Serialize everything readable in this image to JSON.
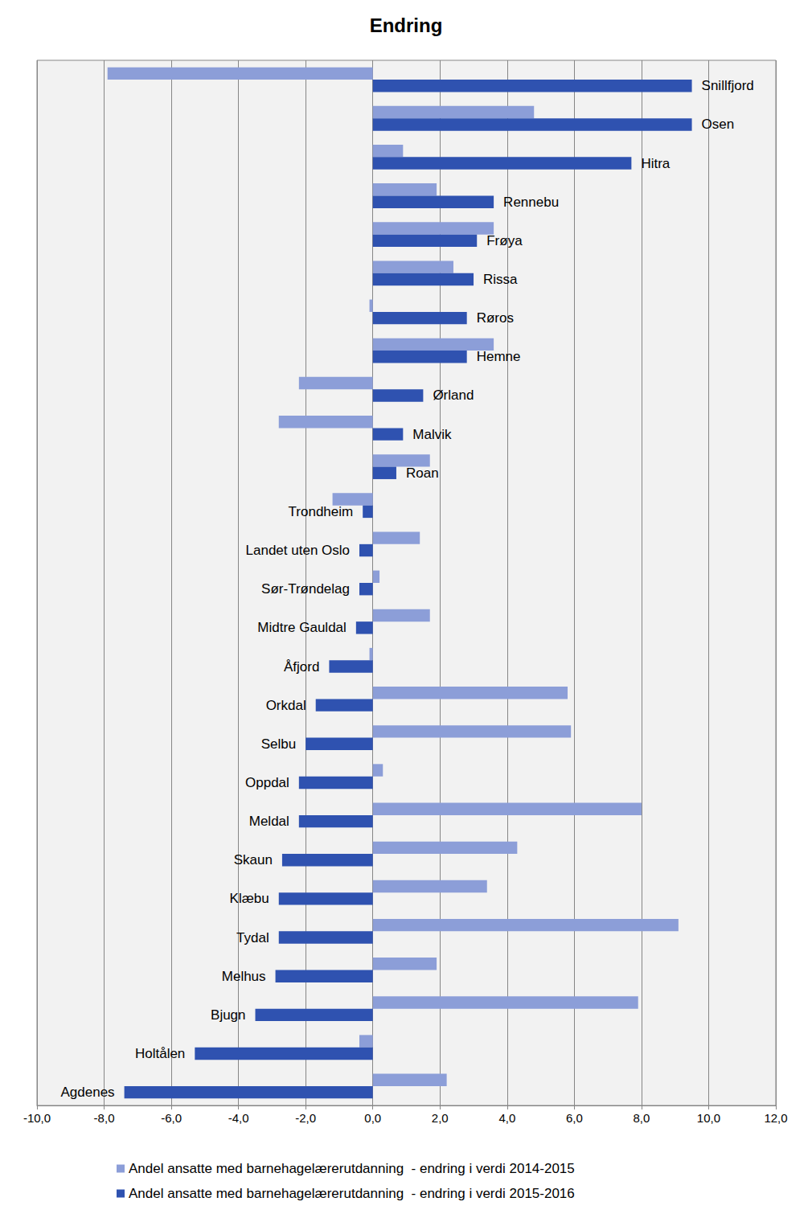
{
  "chart_data": {
    "type": "bar",
    "orientation": "horizontal",
    "title": "Endring",
    "categories": [
      "Snillfjord",
      "Osen",
      "Hitra",
      "Rennebu",
      "Frøya",
      "Rissa",
      "Røros",
      "Hemne",
      "Ørland",
      "Malvik",
      "Roan",
      "Trondheim",
      "Landet uten Oslo",
      "Sør-Trøndelag",
      "Midtre Gauldal",
      "Åfjord",
      "Orkdal",
      "Selbu",
      "Oppdal",
      "Meldal",
      "Skaun",
      "Klæbu",
      "Tydal",
      "Melhus",
      "Bjugn",
      "Holtålen",
      "Agdenes"
    ],
    "series": [
      {
        "name": "Andel ansatte med barnehagelærerutdanning  - endring i verdi 2014-2015",
        "color": "#8c9ed8",
        "values": [
          -7.9,
          4.8,
          0.9,
          1.9,
          3.6,
          2.4,
          -0.1,
          3.6,
          -2.2,
          -2.8,
          1.7,
          -1.2,
          1.4,
          0.2,
          1.7,
          -0.1,
          5.8,
          5.9,
          0.3,
          8.0,
          4.3,
          3.4,
          9.1,
          1.9,
          7.9,
          -0.4,
          2.2
        ]
      },
      {
        "name": "Andel ansatte med barnehagelærerutdanning  - endring i verdi 2015-2016",
        "color": "#2f52b0",
        "values": [
          9.5,
          9.5,
          7.7,
          3.6,
          3.1,
          3.0,
          2.8,
          2.8,
          1.5,
          0.9,
          0.7,
          -0.3,
          -0.4,
          -0.4,
          -0.5,
          -1.3,
          -1.7,
          -2.0,
          -2.2,
          -2.2,
          -2.7,
          -2.8,
          -2.8,
          -2.9,
          -3.5,
          -5.3,
          -7.4
        ]
      }
    ],
    "xlim": [
      -10,
      12
    ],
    "xticks": [
      {
        "value": -10,
        "label": "-10,0"
      },
      {
        "value": -8,
        "label": "-8,0"
      },
      {
        "value": -6,
        "label": "-6,0"
      },
      {
        "value": -4,
        "label": "-4,0"
      },
      {
        "value": -2,
        "label": "-2,0"
      },
      {
        "value": 0,
        "label": "0,0"
      },
      {
        "value": 2,
        "label": "2,0"
      },
      {
        "value": 4,
        "label": "4,0"
      },
      {
        "value": 6,
        "label": "6,0"
      },
      {
        "value": 8,
        "label": "8,0"
      },
      {
        "value": 10,
        "label": "10,0"
      },
      {
        "value": 12,
        "label": "12,0"
      }
    ],
    "grid": true,
    "legend": "bottom"
  }
}
